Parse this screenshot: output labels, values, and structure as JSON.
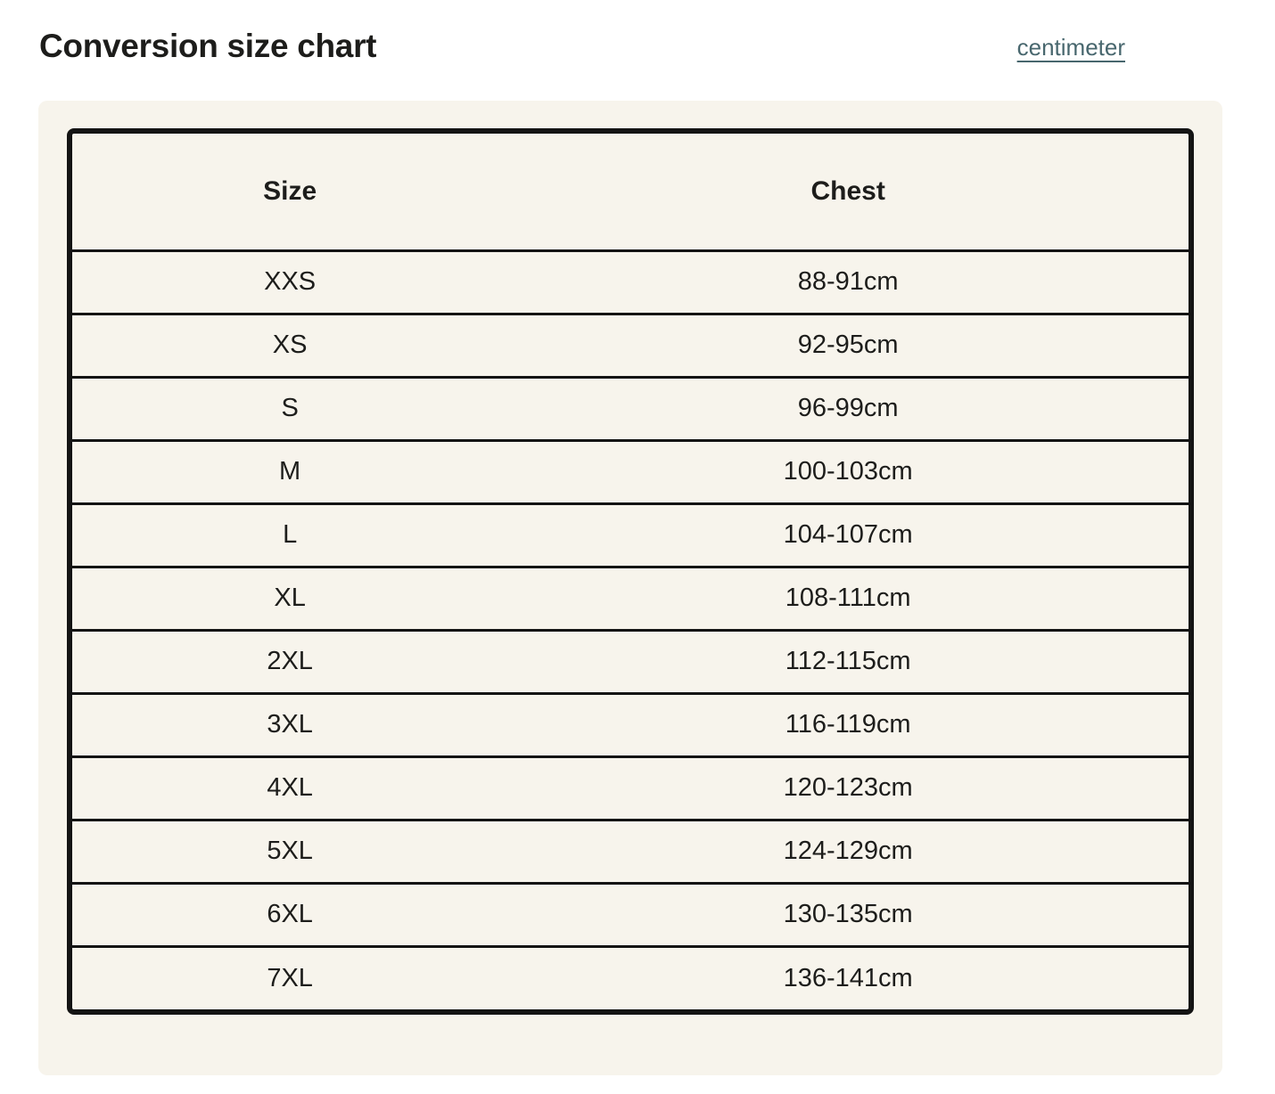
{
  "page": {
    "title": "Conversion size chart",
    "unit_link_label": "centimeter"
  },
  "colors": {
    "page_background": "#ffffff",
    "card_background": "#f7f4ec",
    "table_border": "#141414",
    "text": "#1d1d1b",
    "link": "#48676e"
  },
  "table": {
    "headers": {
      "size": "Size",
      "chest": "Chest"
    },
    "rows": [
      {
        "size": "XXS",
        "chest": "88-91cm"
      },
      {
        "size": "XS",
        "chest": "92-95cm"
      },
      {
        "size": "S",
        "chest": "96-99cm"
      },
      {
        "size": "M",
        "chest": "100-103cm"
      },
      {
        "size": "L",
        "chest": "104-107cm"
      },
      {
        "size": "XL",
        "chest": "108-111cm"
      },
      {
        "size": "2XL",
        "chest": "112-115cm"
      },
      {
        "size": "3XL",
        "chest": "116-119cm"
      },
      {
        "size": "4XL",
        "chest": "120-123cm"
      },
      {
        "size": "5XL",
        "chest": "124-129cm"
      },
      {
        "size": "6XL",
        "chest": "130-135cm"
      },
      {
        "size": "7XL",
        "chest": "136-141cm"
      }
    ]
  }
}
